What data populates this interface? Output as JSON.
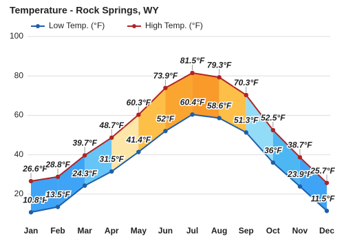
{
  "chart_data": {
    "type": "line",
    "title": "Temperature - Rock Springs, WY",
    "categories": [
      "Jan",
      "Feb",
      "Mar",
      "Apr",
      "May",
      "Jun",
      "Jul",
      "Aug",
      "Sep",
      "Oct",
      "Nov",
      "Dec"
    ],
    "series": [
      {
        "name": "Low Temp. (°F)",
        "color": "#1f5fa8",
        "label_color": "#1f5fa8",
        "values": [
          10.8,
          13.5,
          24.3,
          31.5,
          41.4,
          52,
          60.4,
          58.6,
          51.3,
          36,
          23.9,
          11.5
        ],
        "value_labels": [
          "10.8°F",
          "13.5°F",
          "24.3°F",
          "31.5°F",
          "41.4°F",
          "52°F",
          "60.4°F",
          "58.6°F",
          "51.3°F",
          "36°F",
          "23.9°F",
          "11.5°F"
        ]
      },
      {
        "name": "High Temp. (°F)",
        "color": "#b02424",
        "label_color": "#a01818",
        "values": [
          26.6,
          28.8,
          39.7,
          48.7,
          60.3,
          73.9,
          81.5,
          79.3,
          70.3,
          52.5,
          38.7,
          25.7
        ],
        "value_labels": [
          "26.6°F",
          "28.8°F",
          "39.7°F",
          "48.7°F",
          "60.3°F",
          "73.9°F",
          "81.5°F",
          "79.3°F",
          "70.3°F",
          "52.5°F",
          "38.7°F",
          "25.7°F"
        ]
      }
    ],
    "band_colors": [
      "#3fa4f5",
      "#3fa4f5",
      "#66c4f7",
      "#fde6a8",
      "#fdbf47",
      "#fba531",
      "#f99a2b",
      "#fdbf47",
      "#92dcf7",
      "#4db7f3",
      "#3fa4f5"
    ],
    "ylim": [
      6,
      100
    ],
    "yticks": [
      20,
      40,
      60,
      80,
      100
    ],
    "grid": true
  }
}
